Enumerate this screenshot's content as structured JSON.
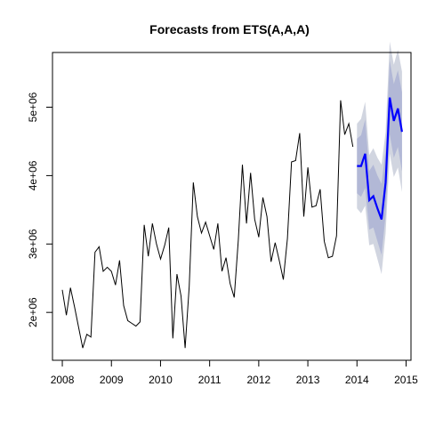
{
  "chart_data": {
    "type": "line",
    "title": "Forecasts from ETS(A,A,A)",
    "xlabel": "",
    "ylabel": "",
    "xlim": [
      2007.8,
      2015.1
    ],
    "ylim": [
      1300000,
      5800000
    ],
    "x_ticks": [
      {
        "value": 2008,
        "label": "2008"
      },
      {
        "value": 2009,
        "label": "2009"
      },
      {
        "value": 2010,
        "label": "2010"
      },
      {
        "value": 2011,
        "label": "2011"
      },
      {
        "value": 2012,
        "label": "2012"
      },
      {
        "value": 2013,
        "label": "2013"
      },
      {
        "value": 2014,
        "label": "2014"
      },
      {
        "value": 2015,
        "label": "2015"
      }
    ],
    "y_ticks": [
      {
        "value": 2000000,
        "label": "2e+06"
      },
      {
        "value": 3000000,
        "label": "3e+06"
      },
      {
        "value": 4000000,
        "label": "4e+06"
      },
      {
        "value": 5000000,
        "label": "5e+06"
      }
    ],
    "series": [
      {
        "role": "observed",
        "color": "#000000",
        "start": 2008.0,
        "frequency": 12,
        "values": [
          2330000,
          1960000,
          2360000,
          2080000,
          1780000,
          1480000,
          1680000,
          1640000,
          2880000,
          2960000,
          2600000,
          2660000,
          2600000,
          2400000,
          2760000,
          2100000,
          1880000,
          1840000,
          1800000,
          1860000,
          3280000,
          2820000,
          3300000,
          3000000,
          2780000,
          2980000,
          3240000,
          1620000,
          2560000,
          2240000,
          1480000,
          2380000,
          3900000,
          3400000,
          3160000,
          3320000,
          3120000,
          2920000,
          3300000,
          2600000,
          2800000,
          2420000,
          2220000,
          3060000,
          4160000,
          3300000,
          4040000,
          3360000,
          3100000,
          3680000,
          3400000,
          2740000,
          3020000,
          2760000,
          2480000,
          3080000,
          4200000,
          4220000,
          4620000,
          3400000,
          4120000,
          3540000,
          3560000,
          3800000,
          3040000,
          2800000,
          2820000,
          3120000,
          5100000,
          4600000,
          4760000,
          4420000
        ]
      },
      {
        "role": "forecast",
        "color": "#0000ff",
        "start": 2014.0,
        "frequency": 12,
        "values": [
          4140000,
          4140000,
          4320000,
          3640000,
          3700000,
          3520000,
          3360000,
          3900000,
          5140000,
          4800000,
          4980000,
          4640000
        ]
      }
    ],
    "intervals": [
      {
        "level": 95,
        "color": "#d1d5e0",
        "lower": [
          3520000,
          3450000,
          3560000,
          2980000,
          3000000,
          2780000,
          2560000,
          3160000,
          4320000,
          3980000,
          4120000,
          3760000
        ],
        "upper": [
          4760000,
          4830000,
          5080000,
          4300000,
          4400000,
          4260000,
          4160000,
          4640000,
          5960000,
          5620000,
          5840000,
          5520000
        ]
      },
      {
        "level": 80,
        "color": "#b2b8d6",
        "lower": [
          3740000,
          3690000,
          3820000,
          3210000,
          3240000,
          3040000,
          2840000,
          3420000,
          4600000,
          4260000,
          4420000,
          4060000
        ],
        "upper": [
          4540000,
          4590000,
          4820000,
          4070000,
          4160000,
          4000000,
          3880000,
          4380000,
          5680000,
          5340000,
          5540000,
          5220000
        ]
      }
    ]
  }
}
